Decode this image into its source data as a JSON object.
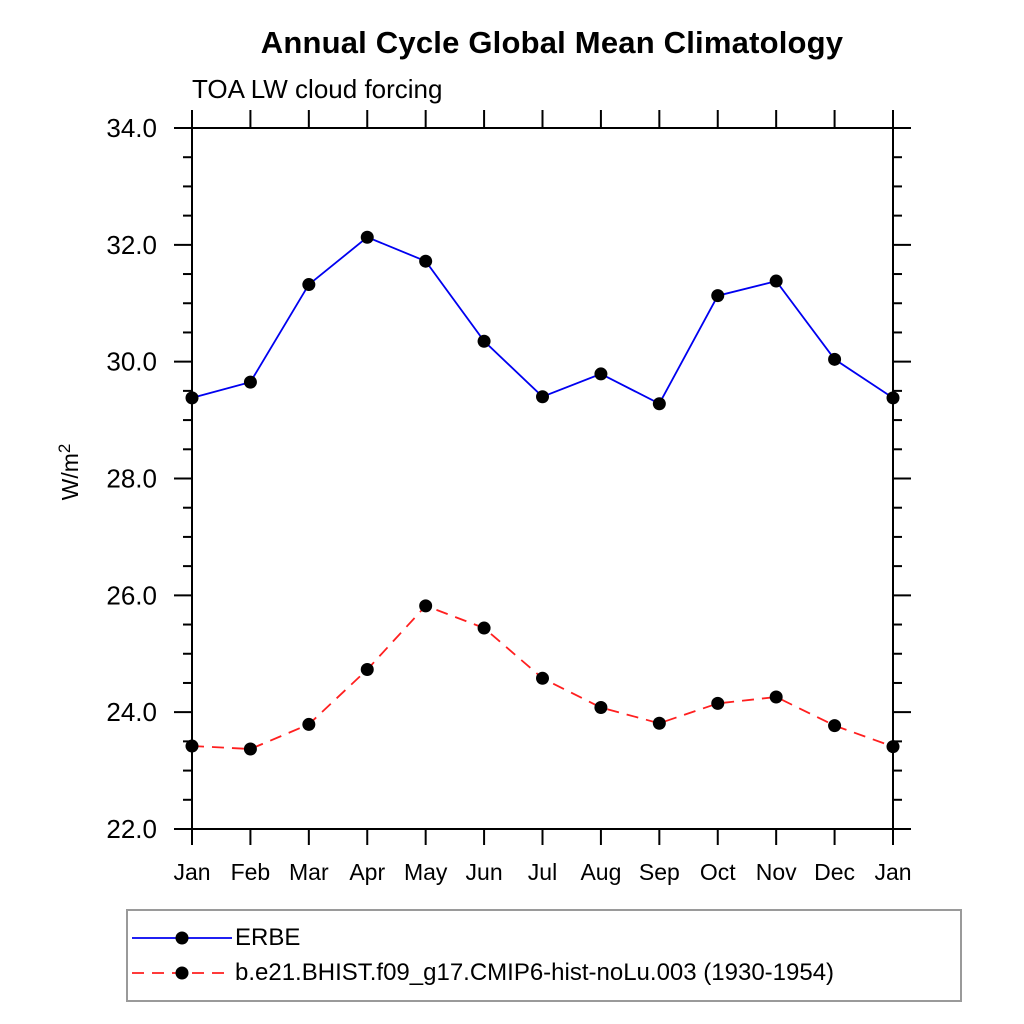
{
  "page": {
    "background": "#ffffff"
  },
  "chart_data": {
    "type": "line",
    "title": "Annual Cycle Global Mean Climatology",
    "subtitle": "TOA LW cloud forcing",
    "ylabel": {
      "base": "W/m",
      "sup": "2"
    },
    "categories": [
      "Jan",
      "Feb",
      "Mar",
      "Apr",
      "May",
      "Jun",
      "Jul",
      "Aug",
      "Sep",
      "Oct",
      "Nov",
      "Dec",
      "Jan"
    ],
    "y_axis": {
      "min": 22.0,
      "max": 34.0,
      "major_step": 2.0,
      "minor_step": 0.5,
      "decimals": 1
    },
    "grid": "off",
    "legend_position": "bottom-left-box",
    "axis_color": "#000000",
    "marker_color": "#000000",
    "series": [
      {
        "name": "ERBE",
        "color": "#0000f0",
        "line_style": "solid",
        "marker": "circle",
        "values": [
          29.38,
          29.65,
          31.32,
          32.13,
          31.72,
          30.35,
          29.4,
          29.79,
          29.28,
          31.13,
          31.38,
          30.04,
          29.38
        ]
      },
      {
        "name": "b.e21.BHIST.f09_g17.CMIP6-hist-noLu.003 (1930-1954)",
        "color": "#ff1f1f",
        "line_style": "dashed",
        "marker": "circle",
        "values": [
          23.42,
          23.37,
          23.79,
          24.73,
          25.82,
          25.44,
          24.58,
          24.08,
          23.81,
          24.15,
          24.26,
          23.77,
          23.41
        ]
      }
    ]
  }
}
